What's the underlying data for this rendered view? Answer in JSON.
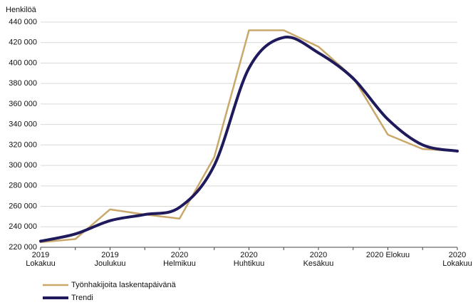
{
  "chart_data": {
    "type": "line",
    "ylabel": "Henkilöä",
    "categories": [
      "2019\nLokakuu",
      null,
      "2019\nJoulukuu",
      null,
      "2020\nHelmikuu",
      null,
      "2020\nHuhtikuu",
      null,
      "2020\nKesäkuu",
      null,
      "2020 Elokuu",
      null,
      "2020\nLokakuu"
    ],
    "series": [
      {
        "name": "Työnhakijoita laskentapäivänä",
        "color": "#c9a86a",
        "smooth": false,
        "values": [
          225000,
          228000,
          257000,
          252000,
          248000,
          308000,
          432000,
          432000,
          416000,
          386000,
          330000,
          316000,
          314000
        ]
      },
      {
        "name": "Trendi",
        "color": "#1f1a5c",
        "smooth": true,
        "values": [
          226000,
          233000,
          246000,
          252000,
          259000,
          300000,
          395000,
          425000,
          410000,
          385000,
          345000,
          320000,
          314000
        ]
      }
    ],
    "ylim": [
      220000,
      440000
    ],
    "yticks": [
      {
        "value": 220000,
        "label": "220 000"
      },
      {
        "value": 240000,
        "label": "240 000"
      },
      {
        "value": 260000,
        "label": "260 000"
      },
      {
        "value": 280000,
        "label": "280 000"
      },
      {
        "value": 300000,
        "label": "300 000"
      },
      {
        "value": 320000,
        "label": "320 000"
      },
      {
        "value": 340000,
        "label": "340 000"
      },
      {
        "value": 360000,
        "label": "360 000"
      },
      {
        "value": 380000,
        "label": "380 000"
      },
      {
        "value": 400000,
        "label": "400 000"
      },
      {
        "value": 420000,
        "label": "420 000"
      },
      {
        "value": 440000,
        "label": "440 000"
      }
    ],
    "grid": true
  }
}
